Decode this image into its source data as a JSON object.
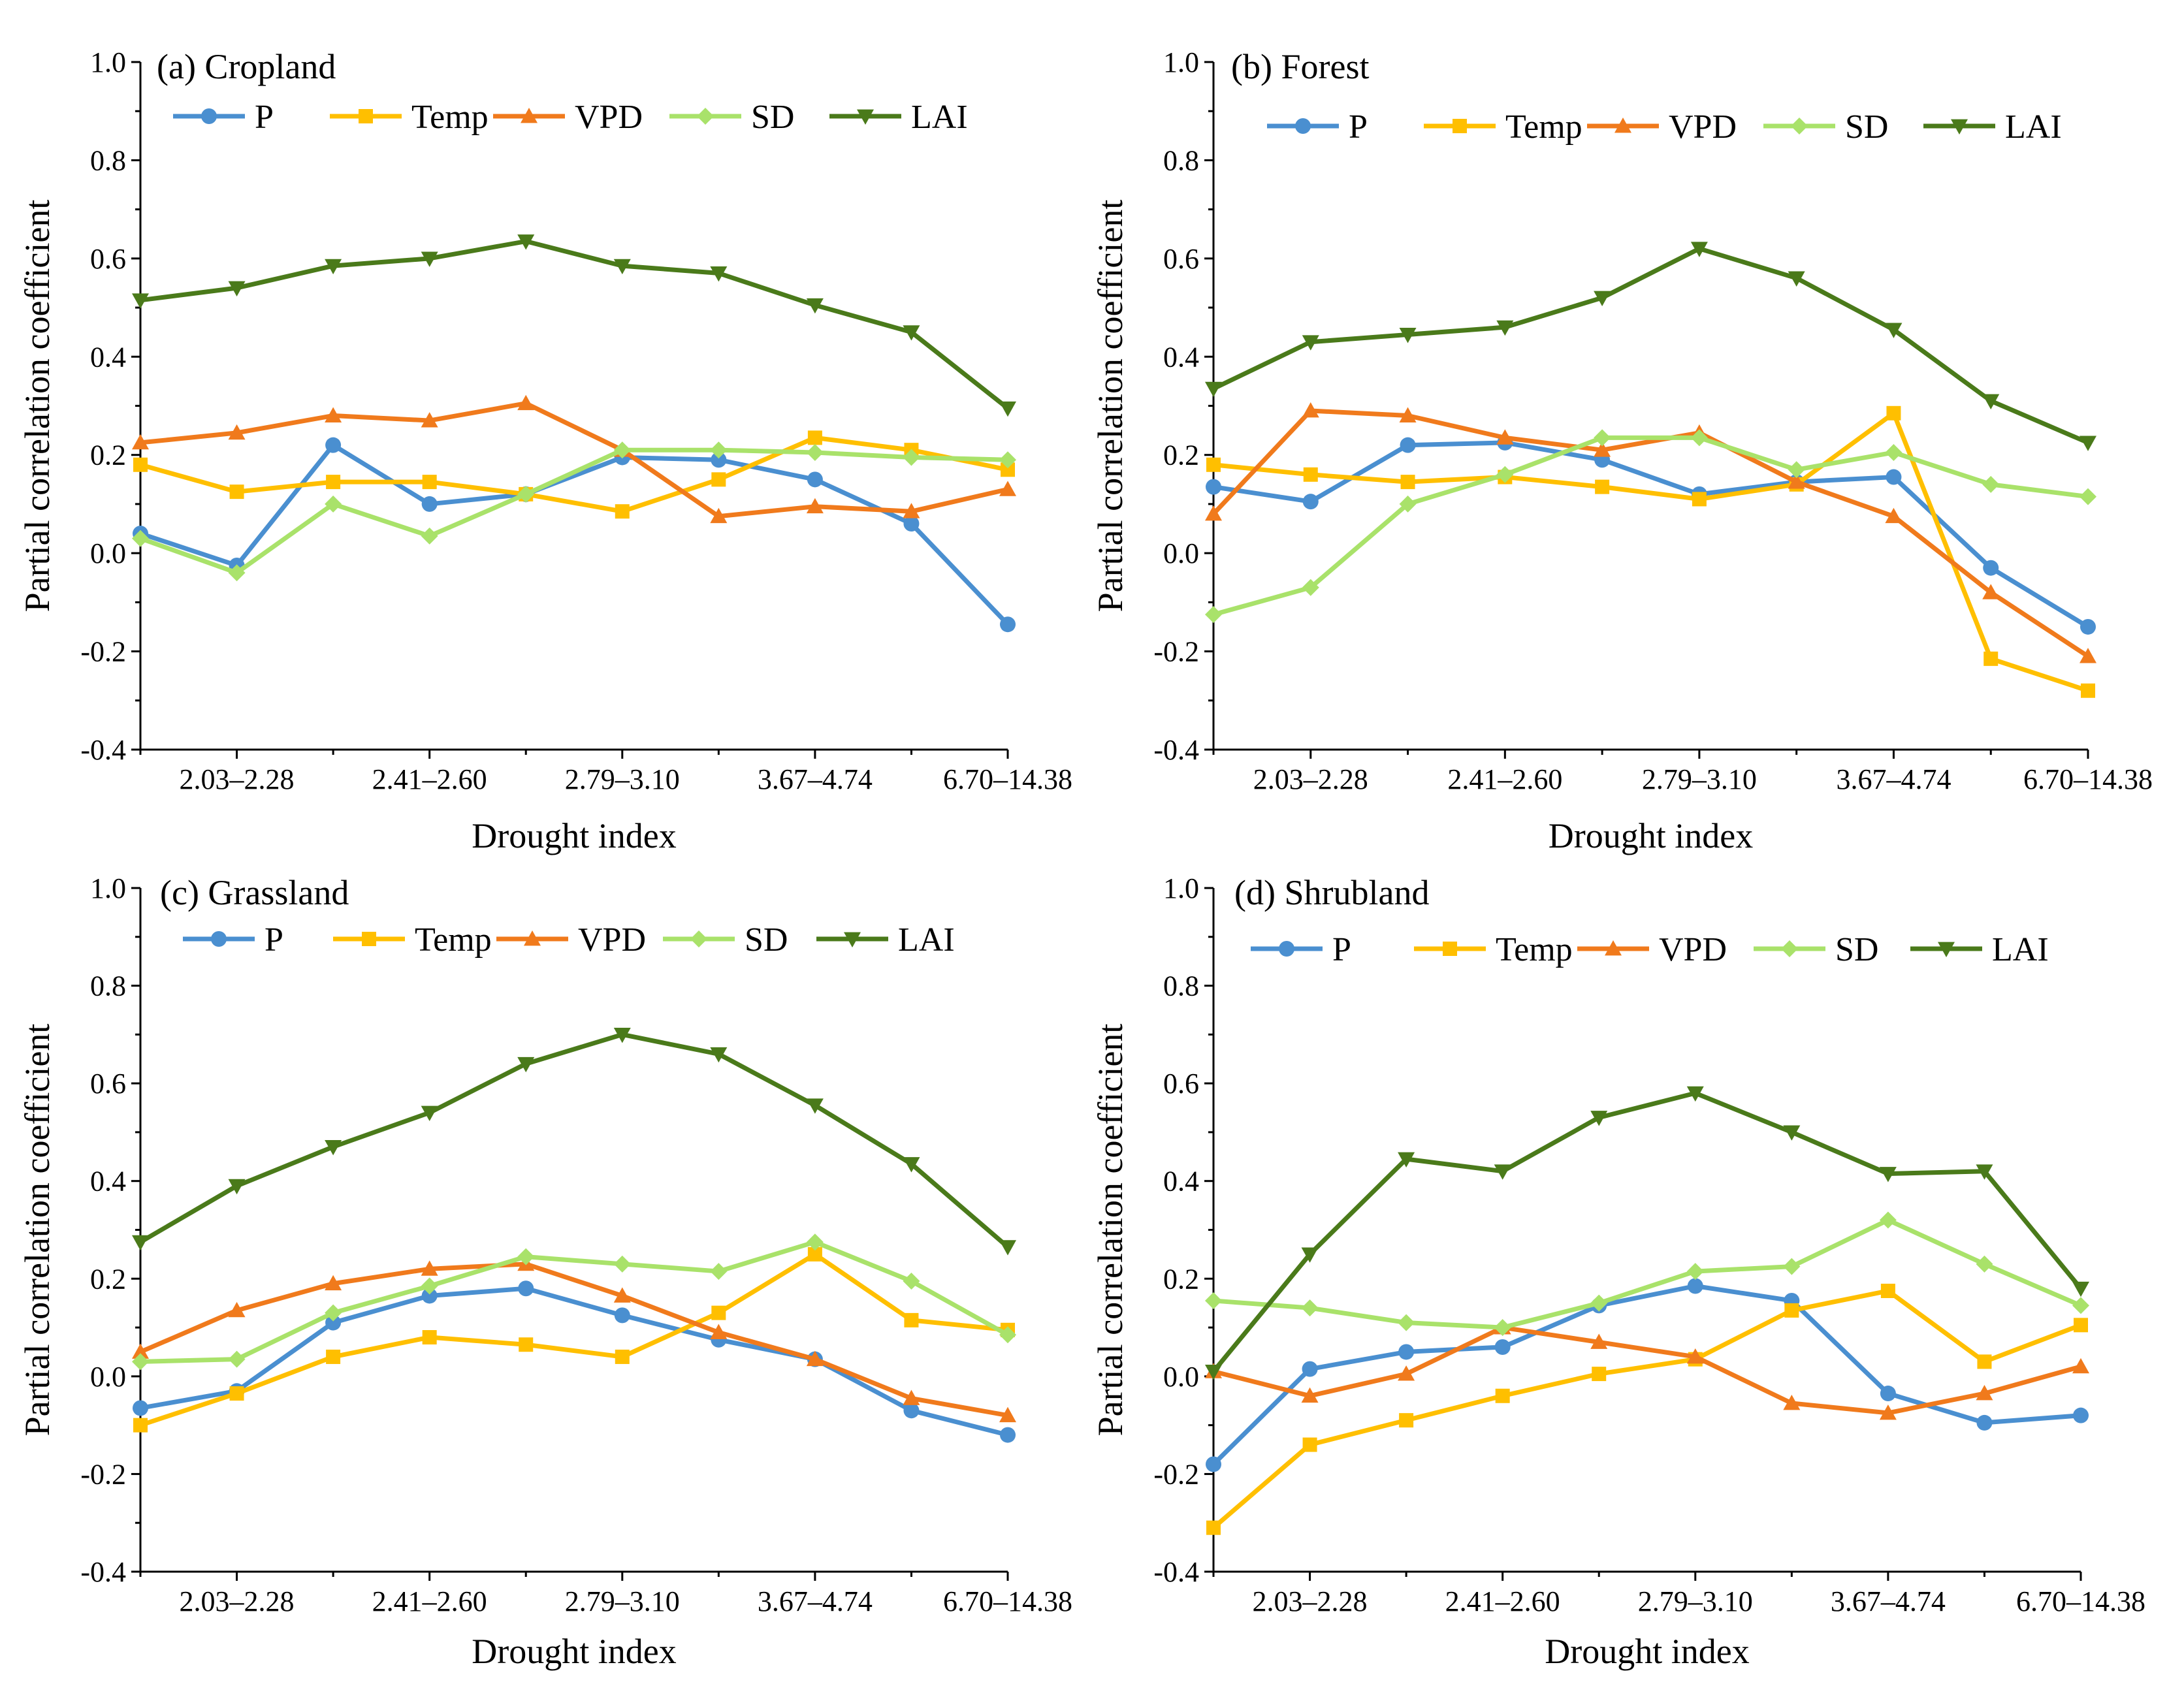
{
  "colors": {
    "P": "#4a8fd0",
    "Temp": "#ffbf00",
    "VPD": "#f07a1c",
    "SD": "#a9e26a",
    "LAI": "#4a7a1a"
  },
  "chart_data": [
    {
      "type": "line",
      "title": "(a) Cropland",
      "xlabel": "Drought index",
      "ylabel": "Partial correlation coefficient",
      "ylim": [
        -0.4,
        1.0
      ],
      "yticks": [
        "-0.4",
        "-0.2",
        "0.0",
        "0.2",
        "0.4",
        "0.6",
        "0.8",
        "1.0"
      ],
      "xtick_labels": [
        "2.03–2.28",
        "2.41–2.60",
        "2.79–3.10",
        "3.67–4.74",
        "6.70–14.38"
      ],
      "x": [
        1,
        2,
        3,
        4,
        5,
        6,
        7,
        8,
        9,
        10
      ],
      "series": [
        {
          "name": "P",
          "marker": "circle",
          "values": [
            0.04,
            -0.025,
            0.22,
            0.1,
            0.12,
            0.195,
            0.19,
            0.15,
            0.06,
            -0.145
          ]
        },
        {
          "name": "Temp",
          "marker": "square",
          "values": [
            0.18,
            0.125,
            0.145,
            0.145,
            0.12,
            0.085,
            0.15,
            0.235,
            0.21,
            0.17
          ]
        },
        {
          "name": "VPD",
          "marker": "triangle-up",
          "values": [
            0.225,
            0.245,
            0.28,
            0.27,
            0.305,
            0.21,
            0.075,
            0.095,
            0.085,
            0.13
          ]
        },
        {
          "name": "SD",
          "marker": "diamond",
          "values": [
            0.03,
            -0.04,
            0.1,
            0.035,
            0.12,
            0.21,
            0.21,
            0.205,
            0.195,
            0.19
          ]
        },
        {
          "name": "LAI",
          "marker": "triangle-down",
          "values": [
            0.515,
            0.54,
            0.585,
            0.6,
            0.635,
            0.585,
            0.57,
            0.505,
            0.45,
            0.295
          ]
        }
      ]
    },
    {
      "type": "line",
      "title": "(b) Forest",
      "xlabel": "Drought index",
      "ylabel": "Partial correlation coefficient",
      "ylim": [
        -0.4,
        1.0
      ],
      "yticks": [
        "-0.4",
        "-0.2",
        "0.0",
        "0.2",
        "0.4",
        "0.6",
        "0.8",
        "1.0"
      ],
      "xtick_labels": [
        "2.03–2.28",
        "2.41–2.60",
        "2.79–3.10",
        "3.67–4.74",
        "6.70–14.38"
      ],
      "x": [
        1,
        2,
        3,
        4,
        5,
        6,
        7,
        8,
        9,
        10
      ],
      "series": [
        {
          "name": "P",
          "marker": "circle",
          "values": [
            0.135,
            0.105,
            0.22,
            0.225,
            0.19,
            0.12,
            0.145,
            0.155,
            -0.03,
            -0.15
          ]
        },
        {
          "name": "Temp",
          "marker": "square",
          "values": [
            0.18,
            0.16,
            0.145,
            0.155,
            0.135,
            0.11,
            0.14,
            0.285,
            -0.215,
            -0.28
          ]
        },
        {
          "name": "VPD",
          "marker": "triangle-up",
          "values": [
            0.08,
            0.29,
            0.28,
            0.235,
            0.21,
            0.245,
            0.145,
            0.075,
            -0.08,
            -0.21
          ]
        },
        {
          "name": "SD",
          "marker": "diamond",
          "values": [
            -0.125,
            -0.07,
            0.1,
            0.16,
            0.235,
            0.235,
            0.17,
            0.205,
            0.14,
            0.115
          ]
        },
        {
          "name": "LAI",
          "marker": "triangle-down",
          "values": [
            0.335,
            0.43,
            0.445,
            0.46,
            0.52,
            0.62,
            0.56,
            0.455,
            0.31,
            0.225
          ]
        }
      ]
    },
    {
      "type": "line",
      "title": "(c) Grassland",
      "xlabel": "Drought index",
      "ylabel": "Partial correlation coefficient",
      "ylim": [
        -0.4,
        1.0
      ],
      "yticks": [
        "-0.4",
        "-0.2",
        "0.0",
        "0.2",
        "0.4",
        "0.6",
        "0.8",
        "1.0"
      ],
      "xtick_labels": [
        "2.03–2.28",
        "2.41–2.60",
        "2.79–3.10",
        "3.67–4.74",
        "6.70–14.38"
      ],
      "x": [
        1,
        2,
        3,
        4,
        5,
        6,
        7,
        8,
        9,
        10
      ],
      "series": [
        {
          "name": "P",
          "marker": "circle",
          "values": [
            -0.065,
            -0.03,
            0.11,
            0.165,
            0.18,
            0.125,
            0.075,
            0.035,
            -0.07,
            -0.12
          ]
        },
        {
          "name": "Temp",
          "marker": "square",
          "values": [
            -0.1,
            -0.035,
            0.04,
            0.08,
            0.065,
            0.04,
            0.13,
            0.25,
            0.115,
            0.095
          ]
        },
        {
          "name": "VPD",
          "marker": "triangle-up",
          "values": [
            0.05,
            0.135,
            0.19,
            0.22,
            0.23,
            0.165,
            0.09,
            0.035,
            -0.045,
            -0.08
          ]
        },
        {
          "name": "SD",
          "marker": "diamond",
          "values": [
            0.03,
            0.035,
            0.13,
            0.185,
            0.245,
            0.23,
            0.215,
            0.275,
            0.195,
            0.085
          ]
        },
        {
          "name": "LAI",
          "marker": "triangle-down",
          "values": [
            0.275,
            0.39,
            0.47,
            0.54,
            0.64,
            0.7,
            0.66,
            0.555,
            0.435,
            0.265
          ]
        }
      ]
    },
    {
      "type": "line",
      "title": "(d) Shrubland",
      "xlabel": "Drought index",
      "ylabel": "Partial correlation coefficient",
      "ylim": [
        -0.4,
        1.0
      ],
      "yticks": [
        "-0.4",
        "-0.2",
        "0.0",
        "0.2",
        "0.4",
        "0.6",
        "0.8",
        "1.0"
      ],
      "xtick_labels": [
        "2.03–2.28",
        "2.41–2.60",
        "2.79–3.10",
        "3.67–4.74",
        "6.70–14.38"
      ],
      "x": [
        1,
        2,
        3,
        4,
        5,
        6,
        7,
        8,
        9,
        10
      ],
      "series": [
        {
          "name": "P",
          "marker": "circle",
          "values": [
            -0.18,
            0.015,
            0.05,
            0.06,
            0.145,
            0.185,
            0.155,
            -0.035,
            -0.095,
            -0.08
          ]
        },
        {
          "name": "Temp",
          "marker": "square",
          "values": [
            -0.31,
            -0.14,
            -0.09,
            -0.04,
            0.005,
            0.035,
            0.135,
            0.175,
            0.03,
            0.105
          ]
        },
        {
          "name": "VPD",
          "marker": "triangle-up",
          "values": [
            0.01,
            -0.04,
            0.005,
            0.1,
            0.07,
            0.04,
            -0.055,
            -0.075,
            -0.035,
            0.02
          ]
        },
        {
          "name": "SD",
          "marker": "diamond",
          "values": [
            0.155,
            0.14,
            0.11,
            0.1,
            0.15,
            0.215,
            0.225,
            0.32,
            0.23,
            0.145
          ]
        },
        {
          "name": "LAI",
          "marker": "triangle-down",
          "values": [
            0.01,
            0.25,
            0.445,
            0.42,
            0.53,
            0.58,
            0.5,
            0.415,
            0.42,
            0.18
          ]
        }
      ]
    }
  ]
}
